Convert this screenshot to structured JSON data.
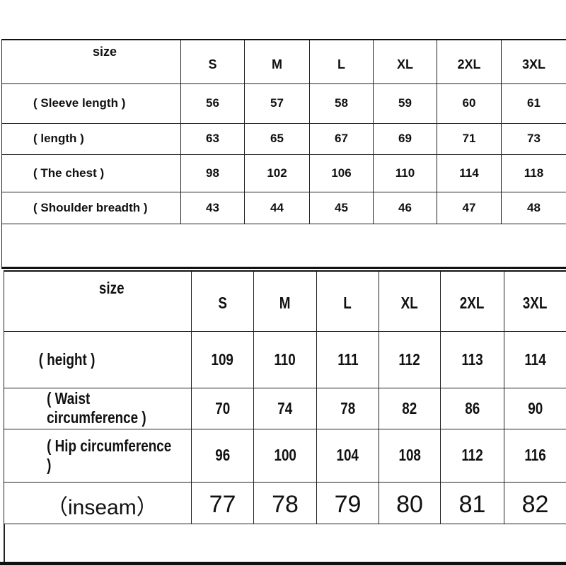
{
  "top_table": {
    "header": {
      "label": "size",
      "sizes": [
        "S",
        "M",
        "L",
        "XL",
        "2XL",
        "3XL"
      ]
    },
    "rows": [
      {
        "label": "( Sleeve length )",
        "values": [
          "56",
          "57",
          "58",
          "59",
          "60",
          "61"
        ]
      },
      {
        "label": "( length )",
        "values": [
          "63",
          "65",
          "67",
          "69",
          "71",
          "73"
        ]
      },
      {
        "label": "( The chest )",
        "values": [
          "98",
          "102",
          "106",
          "110",
          "114",
          "118"
        ]
      },
      {
        "label": "( Shoulder breadth )",
        "values": [
          "43",
          "44",
          "45",
          "46",
          "47",
          "48"
        ]
      }
    ]
  },
  "bottom_table": {
    "header": {
      "label": "size",
      "sizes": [
        "S",
        "M",
        "L",
        "XL",
        "2XL",
        "3XL"
      ]
    },
    "rows": [
      {
        "label": "( height )",
        "values": [
          "109",
          "110",
          "111",
          "112",
          "113",
          "114"
        ]
      },
      {
        "label": "( Waist circumference )",
        "values": [
          "70",
          "74",
          "78",
          "82",
          "86",
          "90"
        ]
      },
      {
        "label": "( Hip circumference )",
        "values": [
          "96",
          "100",
          "104",
          "108",
          "112",
          "116"
        ]
      },
      {
        "label": "（inseam）",
        "values": [
          "77",
          "78",
          "79",
          "80",
          "81",
          "82"
        ]
      }
    ]
  }
}
